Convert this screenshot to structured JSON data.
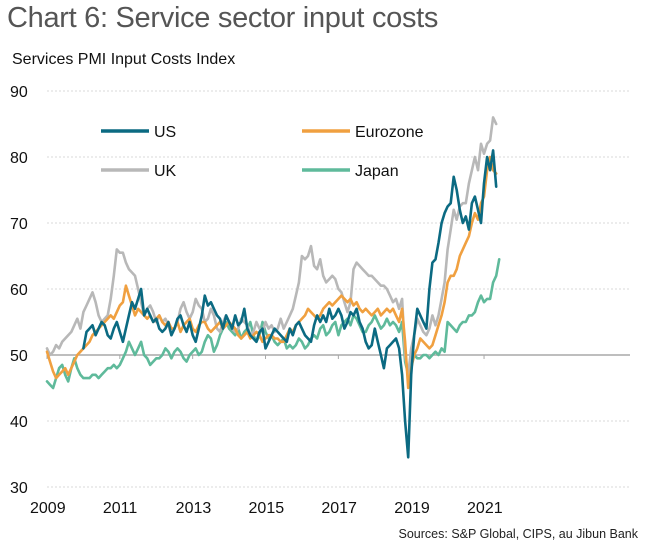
{
  "chart_data": {
    "type": "line",
    "title": "Chart 6: Service sector input costs",
    "ylabel": "Services PMI Input Costs Index",
    "xlabel": "",
    "source": "Sources: S&P Global, CIPS, au Jibun Bank",
    "ylim": [
      30,
      90
    ],
    "yticks": [
      30,
      40,
      50,
      60,
      70,
      80,
      90
    ],
    "xticks": [
      "2009",
      "2011",
      "2013",
      "2015",
      "2017",
      "2019",
      "2021"
    ],
    "x_start": "2009-01",
    "x_frequency": "monthly",
    "reference_line": 50,
    "grid": true,
    "legend_position": "top-left",
    "series": [
      {
        "name": "US",
        "color": "#0b6a82",
        "start_index": 12,
        "values": [
          51,
          53.5,
          54,
          54.5,
          53,
          54,
          55,
          54.5,
          53,
          52.5,
          54,
          55,
          53.5,
          52,
          54,
          56,
          58,
          57,
          58.5,
          60,
          56,
          57,
          56,
          55,
          55.5,
          54,
          53.5,
          54,
          55,
          53,
          54,
          55.5,
          56,
          54.5,
          53.5,
          55,
          53,
          52,
          54,
          56,
          59,
          57.5,
          58,
          57,
          56,
          55.5,
          54,
          56,
          55,
          54,
          56,
          54.5,
          55,
          57,
          54,
          53,
          52.5,
          52,
          53.5,
          54,
          51,
          52,
          53,
          54,
          53.5,
          53,
          52.5,
          52,
          54,
          53,
          54.5,
          55,
          54,
          53,
          52.5,
          52,
          54.5,
          56,
          55,
          56,
          55,
          57,
          55.5,
          56,
          57,
          56,
          54,
          55,
          56.5,
          56,
          57,
          55,
          54,
          52,
          51,
          51.5,
          54,
          52,
          50,
          48,
          51,
          51.5,
          52,
          52.5,
          51,
          47,
          40,
          34.5,
          47,
          53,
          57,
          56,
          55,
          54,
          60,
          64,
          64.5,
          67,
          70,
          71.5,
          72.5,
          73,
          77,
          75,
          72,
          70,
          71,
          69,
          73,
          74,
          72,
          70,
          76,
          80,
          78,
          81,
          75.5
        ]
      },
      {
        "name": "Eurozone",
        "color": "#f0a040",
        "start_index": 0,
        "values": [
          50.5,
          49,
          47.5,
          46.5,
          47,
          47.5,
          48,
          47,
          48,
          49,
          50,
          50.5,
          51,
          51.5,
          52,
          53,
          53.5,
          54,
          54.5,
          55,
          55.5,
          56,
          55.5,
          56.5,
          57.5,
          58,
          60.5,
          59,
          57.5,
          56,
          57,
          56.5,
          56,
          55.5,
          56,
          55,
          55.5,
          56,
          55,
          54.5,
          55,
          54,
          54,
          55,
          53.5,
          54.5,
          55,
          55.5,
          54,
          53.5,
          54.5,
          55,
          55,
          54,
          53.5,
          54,
          54.5,
          55,
          54,
          54.5,
          55,
          54.5,
          54,
          53,
          52.5,
          53,
          53.5,
          52.5,
          53,
          53.5,
          53,
          52,
          52.5,
          53,
          53,
          52.5,
          52.5,
          52,
          52,
          53,
          54,
          53.5,
          54.5,
          55,
          55.5,
          56,
          57,
          56.5,
          56,
          55.5,
          56,
          57,
          57.5,
          58,
          57.5,
          58,
          58.5,
          59,
          58.5,
          58,
          58.5,
          57.5,
          58,
          57,
          56.5,
          57,
          56.5,
          56,
          56.5,
          57,
          56,
          56.5,
          57,
          56.5,
          57,
          56,
          55,
          57,
          52,
          45,
          48,
          50,
          51,
          52.5,
          52,
          51.5,
          51,
          51.5,
          53,
          54.5,
          56,
          58,
          61,
          62,
          62,
          63,
          65,
          66,
          67,
          68,
          70,
          71.5,
          70.5,
          73,
          74,
          78,
          80,
          78,
          77.5
        ]
      },
      {
        "name": "UK",
        "color": "#b8b8b8",
        "start_index": 0,
        "values": [
          51,
          50,
          50.5,
          51.5,
          51,
          52,
          52.5,
          53,
          53.5,
          54.5,
          55.5,
          54,
          56.5,
          57.5,
          58.5,
          59.5,
          58,
          56,
          55,
          55.5,
          56,
          58.5,
          62,
          66,
          65.5,
          65.5,
          64,
          63,
          62.5,
          62,
          60,
          58,
          56,
          57,
          57.5,
          56.5,
          55,
          56,
          55,
          55.5,
          54.5,
          53,
          54,
          55,
          57,
          58,
          56.5,
          55.5,
          56.5,
          58.5,
          57.5,
          57,
          55,
          55.5,
          57,
          56,
          54,
          53.5,
          55,
          56,
          55,
          54,
          53.5,
          54,
          55.5,
          55,
          54.5,
          53,
          53.5,
          55,
          54,
          53.5,
          55,
          54,
          54.5,
          53.5,
          54,
          55.5,
          54,
          55,
          56,
          57,
          59,
          61,
          65,
          64.5,
          65,
          66.5,
          63.5,
          63,
          64.5,
          62,
          61,
          61.5,
          62,
          61.5,
          60,
          59.5,
          58,
          56.5,
          58,
          63,
          64,
          63.5,
          63,
          62.5,
          62,
          62,
          61.5,
          61,
          60.5,
          60.5,
          60,
          59,
          58,
          58.5,
          57,
          58.5,
          50,
          47,
          51,
          53,
          55.5,
          54.5,
          53.5,
          53,
          54,
          56,
          54.5,
          56,
          58.5,
          61,
          66,
          69,
          72,
          70.5,
          72.5,
          73,
          73,
          76,
          78,
          80,
          78,
          82,
          80.5,
          82,
          82.5,
          86,
          85
        ]
      },
      {
        "name": "Japan",
        "color": "#5fba9b",
        "start_index": 0,
        "values": [
          46,
          45.5,
          45,
          46.5,
          48,
          48.5,
          47,
          46,
          48,
          49.5,
          48,
          47,
          46.5,
          46.5,
          46.5,
          47,
          47,
          46.5,
          47,
          47.5,
          48,
          48,
          48.5,
          48,
          48.5,
          49.5,
          50.5,
          52,
          51,
          50,
          51,
          52,
          50,
          49.5,
          48.5,
          49,
          49.5,
          49.5,
          50,
          51,
          50.5,
          49.5,
          50.5,
          51,
          50.5,
          49.5,
          49,
          50,
          50.5,
          51,
          50,
          50.5,
          52,
          53,
          52.5,
          50.5,
          51.5,
          53,
          54,
          55,
          54,
          53.5,
          53,
          54,
          52.5,
          53.5,
          54,
          55,
          53,
          52,
          53,
          55,
          53.5,
          52.5,
          53,
          52,
          51.5,
          52,
          52.5,
          51,
          51.5,
          51,
          51.5,
          52.5,
          52,
          51,
          51.5,
          52.5,
          53,
          52.5,
          54,
          54.5,
          53,
          53.5,
          54.5,
          55,
          53,
          54.5,
          55,
          55.5,
          54.5,
          56,
          55.5,
          54.5,
          53.5,
          53.5,
          54.5,
          55,
          56,
          55,
          54,
          54.5,
          55.5,
          54.5,
          55,
          54.5,
          53.5,
          55,
          49,
          47,
          50,
          50,
          49.5,
          49.5,
          50,
          50,
          49.5,
          50,
          50.5,
          50,
          51,
          50.5,
          55,
          54.5,
          54,
          53.5,
          54.5,
          55,
          55,
          56,
          56,
          56.5,
          58,
          59,
          58,
          58.5,
          58.5,
          61,
          62,
          64.5
        ]
      }
    ]
  }
}
